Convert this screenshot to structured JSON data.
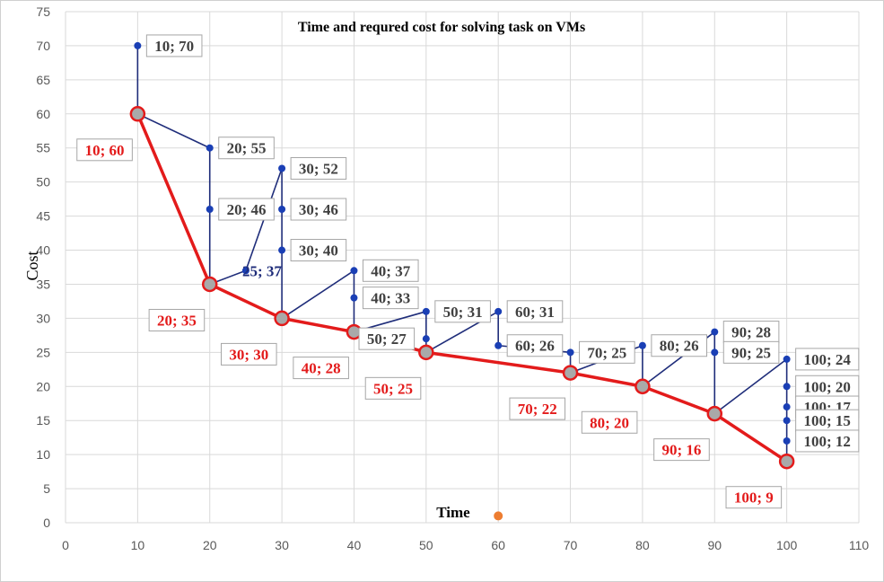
{
  "chart_data": {
    "type": "scatter",
    "title": "Time and requred cost for solving task on VMs",
    "xlabel": "Time",
    "ylabel": "Cost",
    "xlim": [
      0,
      110
    ],
    "ylim": [
      0,
      75
    ],
    "xticks": [
      0,
      10,
      20,
      30,
      40,
      50,
      60,
      70,
      80,
      90,
      100,
      110
    ],
    "yticks": [
      0,
      5,
      10,
      15,
      20,
      25,
      30,
      35,
      40,
      45,
      50,
      55,
      60,
      65,
      70,
      75
    ],
    "grid": true,
    "colors": {
      "blue": "#1f2d7a",
      "blue_marker": "#1a3fb5",
      "red": "#e31b1b",
      "red_marker_fill": "#a9a9a9",
      "orange": "#ed7d31"
    },
    "blue_segments": [
      [
        [
          10,
          70
        ],
        [
          10,
          60
        ]
      ],
      [
        [
          10,
          60
        ],
        [
          20,
          55
        ]
      ],
      [
        [
          20,
          55
        ],
        [
          20,
          35
        ]
      ],
      [
        [
          20,
          35
        ],
        [
          25,
          37
        ]
      ],
      [
        [
          25,
          37
        ],
        [
          30,
          52
        ]
      ],
      [
        [
          30,
          52
        ],
        [
          30,
          30
        ]
      ],
      [
        [
          30,
          30
        ],
        [
          40,
          37
        ]
      ],
      [
        [
          40,
          37
        ],
        [
          40,
          28
        ]
      ],
      [
        [
          40,
          28
        ],
        [
          50,
          31
        ]
      ],
      [
        [
          50,
          31
        ],
        [
          50,
          25
        ]
      ],
      [
        [
          50,
          25
        ],
        [
          60,
          31
        ]
      ],
      [
        [
          60,
          31
        ],
        [
          60,
          26
        ]
      ],
      [
        [
          60,
          26
        ],
        [
          70,
          25
        ]
      ],
      [
        [
          70,
          25
        ],
        [
          70,
          22
        ]
      ],
      [
        [
          70,
          22
        ],
        [
          80,
          26
        ]
      ],
      [
        [
          80,
          26
        ],
        [
          80,
          20
        ]
      ],
      [
        [
          80,
          20
        ],
        [
          90,
          28
        ]
      ],
      [
        [
          90,
          28
        ],
        [
          90,
          16
        ]
      ],
      [
        [
          90,
          16
        ],
        [
          100,
          24
        ]
      ],
      [
        [
          100,
          24
        ],
        [
          100,
          9
        ]
      ]
    ],
    "blue_points": [
      {
        "x": 10,
        "y": 70,
        "label": "10; 70"
      },
      {
        "x": 20,
        "y": 55,
        "label": "20; 55"
      },
      {
        "x": 20,
        "y": 46,
        "label": "20; 46"
      },
      {
        "x": 25,
        "y": 37,
        "label": "25; 37"
      },
      {
        "x": 30,
        "y": 52,
        "label": "30; 52"
      },
      {
        "x": 30,
        "y": 46,
        "label": "30; 46"
      },
      {
        "x": 30,
        "y": 40,
        "label": "30; 40"
      },
      {
        "x": 40,
        "y": 37,
        "label": "40; 37"
      },
      {
        "x": 40,
        "y": 33,
        "label": "40; 33"
      },
      {
        "x": 50,
        "y": 31,
        "label": "50; 31"
      },
      {
        "x": 50,
        "y": 27,
        "label": "50; 27"
      },
      {
        "x": 60,
        "y": 31,
        "label": "60; 31"
      },
      {
        "x": 60,
        "y": 26,
        "label": "60; 26"
      },
      {
        "x": 70,
        "y": 25,
        "label": "70; 25"
      },
      {
        "x": 80,
        "y": 26,
        "label": "80; 26"
      },
      {
        "x": 90,
        "y": 28,
        "label": "90; 28"
      },
      {
        "x": 90,
        "y": 25,
        "label": "90; 25"
      },
      {
        "x": 100,
        "y": 24,
        "label": "100; 24"
      },
      {
        "x": 100,
        "y": 20,
        "label": "100; 20"
      },
      {
        "x": 100,
        "y": 17,
        "label": "100; 17"
      },
      {
        "x": 100,
        "y": 15,
        "label": "100; 15"
      },
      {
        "x": 100,
        "y": 12,
        "label": "100; 12"
      }
    ],
    "red_series": [
      {
        "x": 10,
        "y": 60,
        "label": "10; 60"
      },
      {
        "x": 20,
        "y": 35,
        "label": "20; 35"
      },
      {
        "x": 30,
        "y": 30,
        "label": "30; 30"
      },
      {
        "x": 40,
        "y": 28,
        "label": "40; 28"
      },
      {
        "x": 50,
        "y": 25,
        "label": "50; 25"
      },
      {
        "x": 70,
        "y": 22,
        "label": "70; 22"
      },
      {
        "x": 80,
        "y": 20,
        "label": "80; 20"
      },
      {
        "x": 90,
        "y": 16,
        "label": "90; 16"
      },
      {
        "x": 100,
        "y": 9,
        "label": "100; 9"
      }
    ],
    "orange_point": {
      "x": 60,
      "y": 1
    }
  }
}
